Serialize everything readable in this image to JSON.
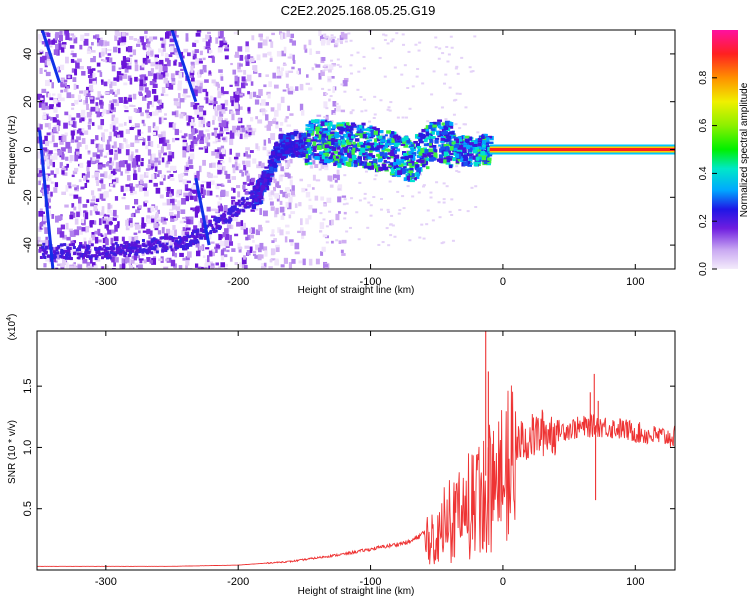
{
  "title": "C2E2.2025.168.05.25.G19",
  "chart_data": [
    {
      "type": "heatmap",
      "xlabel": "Height of straight line (km)",
      "ylabel": "Frequency (Hz)",
      "xlim": [
        -352,
        130
      ],
      "ylim": [
        -50,
        50
      ],
      "xticks": [
        -300,
        -200,
        -100,
        0,
        100
      ],
      "yticks": [
        -40,
        -20,
        0,
        20,
        40
      ],
      "colorbar": {
        "label": "Normalized spectral amplitude",
        "range": [
          0,
          1
        ],
        "ticks": [
          0.0,
          0.2,
          0.4,
          0.6,
          0.8
        ]
      },
      "ridge": [
        {
          "x": -330,
          "y": -42
        },
        {
          "x": -300,
          "y": -42
        },
        {
          "x": -240,
          "y": -38
        },
        {
          "x": -210,
          "y": -28
        },
        {
          "x": -185,
          "y": -17
        },
        {
          "x": -170,
          "y": 2
        },
        {
          "x": -140,
          "y": 4
        },
        {
          "x": -100,
          "y": 2
        },
        {
          "x": -70,
          "y": -4
        },
        {
          "x": -50,
          "y": 5
        },
        {
          "x": -30,
          "y": 0
        },
        {
          "x": -10,
          "y": 1
        },
        {
          "x": 10,
          "y": 0
        },
        {
          "x": 60,
          "y": 0
        },
        {
          "x": 130,
          "y": 0
        }
      ],
      "grid": false
    },
    {
      "type": "line",
      "xlabel": "Height of straight line (km)",
      "ylabel": "SNR (10 * v/v)",
      "yexponent_label": "(x10",
      "yexponent_sup": "4",
      "yexponent_close": ")",
      "xlim": [
        -352,
        130
      ],
      "ylim": [
        0,
        1.95
      ],
      "xticks": [
        -300,
        -200,
        -100,
        0,
        100
      ],
      "yticks": [
        0.5,
        1.0,
        1.5
      ],
      "ytick_labels": [
        "0.5",
        "1.0",
        "1.5"
      ],
      "series_color": "#ee3333",
      "envelope": [
        {
          "x": -352,
          "y": 0.03
        },
        {
          "x": -250,
          "y": 0.03
        },
        {
          "x": -200,
          "y": 0.04
        },
        {
          "x": -160,
          "y": 0.07
        },
        {
          "x": -120,
          "y": 0.13
        },
        {
          "x": -90,
          "y": 0.19
        },
        {
          "x": -70,
          "y": 0.23
        },
        {
          "x": -50,
          "y": 0.37
        },
        {
          "x": -35,
          "y": 0.55
        },
        {
          "x": -20,
          "y": 0.7
        },
        {
          "x": -10,
          "y": 0.8
        },
        {
          "x": 0,
          "y": 0.95
        },
        {
          "x": 15,
          "y": 1.05
        },
        {
          "x": 30,
          "y": 1.12
        },
        {
          "x": 50,
          "y": 1.15
        },
        {
          "x": 70,
          "y": 1.18
        },
        {
          "x": 90,
          "y": 1.15
        },
        {
          "x": 110,
          "y": 1.1
        },
        {
          "x": 130,
          "y": 1.08
        }
      ],
      "spikes": [
        {
          "x": -13,
          "y": 1.95
        },
        {
          "x": -11,
          "y": 1.62
        },
        {
          "x": 69,
          "y": 1.6
        },
        {
          "x": 66,
          "y": 1.45
        },
        {
          "x": 70,
          "y": 0.57
        },
        {
          "x": 72,
          "y": 1.38
        }
      ],
      "grid": false
    }
  ]
}
